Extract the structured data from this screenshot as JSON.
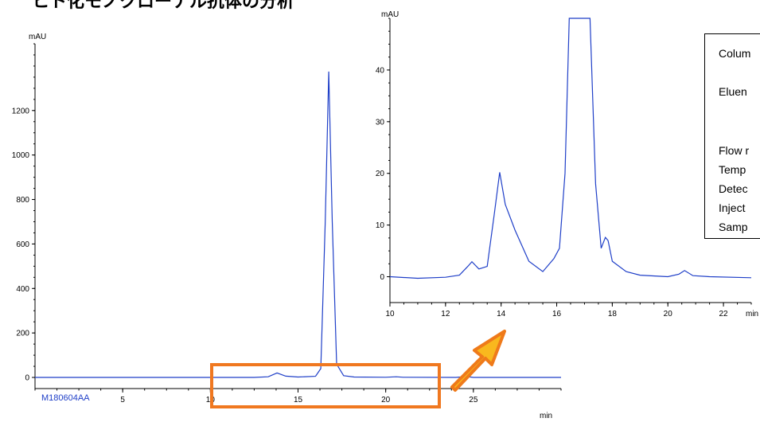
{
  "title": "ヒト化モノクローナル抗体の分析",
  "sample_label": "M180604AA",
  "info_labels": [
    "Colum",
    "Eluen",
    "Flow r",
    "Temp",
    "Detec",
    "Inject",
    "Samp"
  ],
  "colors": {
    "trace": "#1f3fc8",
    "highlight": "#f07820",
    "arrow_fill": "#f9b81e",
    "arrow_stroke": "#ef7a1a"
  },
  "chart_data": [
    {
      "type": "line",
      "name": "main",
      "xlabel": "min",
      "ylabel": "mAU",
      "xlim": [
        0,
        30
      ],
      "ylim": [
        -50,
        1500
      ],
      "xticks": [
        5,
        10,
        15,
        20,
        25
      ],
      "yticks": [
        0,
        200,
        400,
        600,
        800,
        1000,
        1200
      ],
      "x": [
        0,
        12.5,
        13.3,
        13.8,
        14.3,
        15,
        16,
        16.3,
        16.55,
        16.75,
        16.95,
        17.2,
        17.6,
        18.2,
        20,
        20.6,
        21,
        24,
        24.6,
        25,
        30
      ],
      "y": [
        0,
        0,
        3,
        20,
        6,
        2,
        5,
        40,
        700,
        1375,
        700,
        60,
        8,
        2,
        1,
        3,
        1,
        0,
        4,
        0,
        0
      ]
    },
    {
      "type": "line",
      "name": "inset",
      "xlabel": "min",
      "ylabel": "mAU",
      "xlim": [
        10,
        23
      ],
      "ylim": [
        -5,
        50
      ],
      "xticks": [
        10,
        12,
        14,
        16,
        18,
        20,
        22
      ],
      "yticks": [
        0,
        10,
        20,
        30,
        40
      ],
      "x": [
        10,
        11,
        12,
        12.5,
        12.8,
        12.95,
        13.2,
        13.5,
        13.75,
        13.95,
        14.15,
        14.5,
        15,
        15.5,
        15.9,
        16.1,
        16.3,
        16.45,
        17.2,
        17.4,
        17.6,
        17.75,
        17.85,
        18,
        18.5,
        19,
        20,
        20.4,
        20.6,
        20.9,
        21.5,
        23
      ],
      "y": [
        0,
        -0.3,
        -0.1,
        0.3,
        2,
        2.9,
        1.5,
        2,
        12,
        20.2,
        14,
        9,
        3,
        1,
        3.5,
        5.5,
        20,
        50,
        50,
        18,
        5.5,
        7.6,
        7,
        3,
        1,
        0.3,
        0,
        0.5,
        1.2,
        0.2,
        0,
        -0.2
      ]
    }
  ]
}
